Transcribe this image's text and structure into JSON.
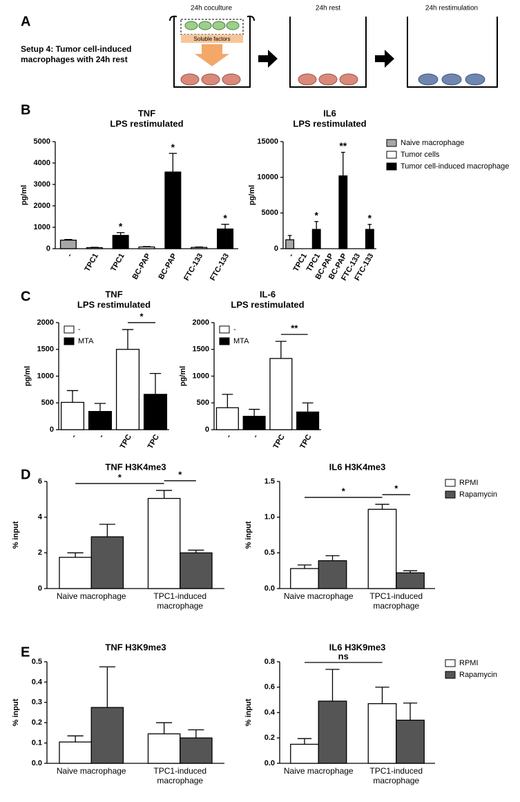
{
  "figure": {
    "panels": [
      "A",
      "B",
      "C",
      "D",
      "E"
    ],
    "setup": [
      "Setup 4: Tumor cell-induced",
      "macrophages with 24h rest"
    ],
    "steps": [
      "24h coculture",
      "24h rest",
      "24h restimulation"
    ],
    "insert_label": "Soluble factors"
  },
  "chart_data": [
    {
      "type": "bar",
      "title": "TNF",
      "subtitle": "LPS restimulated",
      "y_label": "pg/ml",
      "categories": [
        "-",
        "TPC1",
        "TPC1",
        "BC-PAP",
        "BC-PAP",
        "FTC-133",
        "FTC-133"
      ],
      "rotate_labels": true,
      "ylim": [
        0,
        5000
      ],
      "yticks": [
        0,
        1000,
        2000,
        3000,
        4000,
        5000
      ],
      "series": [
        {
          "color": "#a6a6a6",
          "values": [
            400,
            null,
            null,
            null,
            null,
            null,
            null
          ],
          "errors": [
            30,
            null,
            null,
            null,
            null,
            null,
            null
          ]
        },
        {
          "color": "#ffffff",
          "values": [
            null,
            50,
            null,
            80,
            null,
            60,
            null
          ],
          "errors": [
            null,
            15,
            null,
            20,
            null,
            20,
            null
          ]
        },
        {
          "color": "#000000",
          "values": [
            null,
            null,
            620,
            null,
            3580,
            null,
            920
          ],
          "errors": [
            null,
            null,
            130,
            null,
            870,
            null,
            220
          ]
        }
      ],
      "significance": [
        null,
        null,
        "*",
        null,
        "*",
        null,
        "*"
      ]
    },
    {
      "type": "bar",
      "title": "IL6",
      "subtitle": "LPS restimulated",
      "y_label": "pg/ml",
      "categories": [
        "-",
        "TPC1",
        "TPC1",
        "BC-PAP",
        "BC-PAP",
        "FTC-133",
        "FTC-133"
      ],
      "rotate_labels": true,
      "ylim": [
        0,
        15000
      ],
      "yticks": [
        0,
        5000,
        10000,
        15000
      ],
      "legend": "right",
      "series": [
        {
          "name": "Naive macrophage",
          "color": "#a6a6a6",
          "values": [
            1250,
            null,
            null,
            null,
            null,
            null,
            null
          ],
          "errors": [
            600,
            null,
            null,
            null,
            null,
            null,
            null
          ]
        },
        {
          "name": "Tumor cells",
          "color": "#ffffff",
          "values": [
            null,
            0,
            null,
            0,
            null,
            0,
            null
          ],
          "errors": [
            null,
            null,
            null,
            null,
            null,
            null,
            null
          ]
        },
        {
          "name": "Tumor cell-induced macrophage",
          "color": "#000000",
          "values": [
            null,
            null,
            2700,
            null,
            10200,
            null,
            2700
          ],
          "errors": [
            null,
            null,
            1100,
            null,
            3300,
            null,
            700
          ]
        }
      ],
      "significance": [
        null,
        null,
        "*",
        null,
        "**",
        null,
        "*"
      ]
    },
    {
      "type": "bar",
      "title": "TNF",
      "subtitle": "LPS restimulated",
      "y_label": "pg/ml",
      "categories": [
        "-",
        "-",
        "TPC",
        "TPC"
      ],
      "rotate_labels": true,
      "ylim": [
        0,
        2000
      ],
      "yticks": [
        0,
        500,
        1000,
        1500,
        2000
      ],
      "legend": "upper left",
      "series": [
        {
          "name": "-",
          "color": "#ffffff",
          "values": [
            510,
            null,
            1500,
            null
          ],
          "errors": [
            220,
            null,
            370,
            null
          ]
        },
        {
          "name": "MTA",
          "color": "#000000",
          "values": [
            null,
            340,
            null,
            660
          ],
          "errors": [
            null,
            150,
            null,
            390
          ]
        }
      ],
      "brackets": [
        {
          "label": "*",
          "from": [
            0,
            2
          ],
          "to": [
            1,
            3
          ]
        }
      ]
    },
    {
      "type": "bar",
      "title": "IL-6",
      "subtitle": "LPS restimulated",
      "y_label": "pg/ml",
      "categories": [
        "-",
        "-",
        "TPC",
        "TPC"
      ],
      "rotate_labels": true,
      "ylim": [
        0,
        2000
      ],
      "yticks": [
        0,
        500,
        1000,
        1500,
        2000
      ],
      "legend": "upper left",
      "series": [
        {
          "name": "-",
          "color": "#ffffff",
          "values": [
            410,
            null,
            1330,
            null
          ],
          "errors": [
            250,
            null,
            320,
            null
          ]
        },
        {
          "name": "MTA",
          "color": "#000000",
          "values": [
            null,
            250,
            null,
            330
          ],
          "errors": [
            null,
            130,
            null,
            170
          ]
        }
      ],
      "brackets": [
        {
          "label": "**",
          "from": [
            0,
            2
          ],
          "to": [
            1,
            3
          ]
        }
      ]
    },
    {
      "type": "bar",
      "title": "TNF H3K4me3",
      "y_label": "% input",
      "grouped": true,
      "categories": [
        "Naive macrophage",
        "TPC1-induced macrophage"
      ],
      "ylim": [
        0,
        6
      ],
      "yticks": [
        0,
        2,
        4,
        6
      ],
      "series": [
        {
          "color": "#ffffff",
          "values": [
            1.75,
            5.05
          ],
          "errors": [
            0.25,
            0.45
          ]
        },
        {
          "color": "#555555",
          "values": [
            2.9,
            2.0
          ],
          "errors": [
            0.7,
            0.15
          ]
        }
      ],
      "brackets": [
        {
          "label": "*",
          "from": [
            0,
            0
          ],
          "to": [
            0,
            1
          ]
        },
        {
          "label": "*",
          "from": [
            0,
            1
          ],
          "to": [
            1,
            1
          ]
        }
      ]
    },
    {
      "type": "bar",
      "title": "IL6 H3K4me3",
      "y_label": "% input",
      "grouped": true,
      "legend": "right",
      "categories": [
        "Naive macrophage",
        "TPC1-induced macrophage"
      ],
      "ylim": [
        0,
        1.5
      ],
      "yticks": [
        {
          "value": 0,
          "label": "0.0"
        },
        0.5,
        {
          "value": 1,
          "label": "1.0"
        },
        1.5
      ],
      "series": [
        {
          "name": "RPMI",
          "color": "#ffffff",
          "values": [
            0.28,
            1.11
          ],
          "errors": [
            0.05,
            0.07
          ]
        },
        {
          "name": "Rapamycin",
          "color": "#555555",
          "values": [
            0.39,
            0.22
          ],
          "errors": [
            0.07,
            0.03
          ]
        }
      ],
      "brackets": [
        {
          "label": "*",
          "from": [
            0,
            0
          ],
          "to": [
            0,
            1
          ]
        },
        {
          "label": "*",
          "from": [
            0,
            1
          ],
          "to": [
            1,
            1
          ]
        }
      ]
    },
    {
      "type": "bar",
      "title": "TNF H3K9me3",
      "y_label": "% input",
      "grouped": true,
      "categories": [
        "Naive macrophage",
        "TPC1-induced macrophage"
      ],
      "ylim": [
        0,
        0.5
      ],
      "yticks": [
        {
          "value": 0,
          "label": "0.0"
        },
        0.1,
        0.2,
        0.3,
        0.4,
        0.5
      ],
      "series": [
        {
          "color": "#ffffff",
          "values": [
            0.105,
            0.145
          ],
          "errors": [
            0.03,
            0.055
          ]
        },
        {
          "color": "#555555",
          "values": [
            0.275,
            0.125
          ],
          "errors": [
            0.2,
            0.04
          ]
        }
      ]
    },
    {
      "type": "bar",
      "title": "IL6 H3K9me3",
      "y_label": "% input",
      "grouped": true,
      "legend": "right",
      "categories": [
        "Naive macrophage",
        "TPC1-induced macrophage"
      ],
      "ylim": [
        0,
        0.8
      ],
      "yticks": [
        {
          "value": 0,
          "label": "0.0"
        },
        0.2,
        0.4,
        0.6,
        0.8
      ],
      "series": [
        {
          "name": "RPMI",
          "color": "#ffffff",
          "values": [
            0.15,
            0.47
          ],
          "errors": [
            0.045,
            0.13
          ]
        },
        {
          "name": "Rapamycin",
          "color": "#555555",
          "values": [
            0.49,
            0.34
          ],
          "errors": [
            0.25,
            0.135
          ]
        }
      ],
      "brackets": [
        {
          "label": "ns",
          "from": [
            0,
            0
          ],
          "to": [
            0,
            1
          ]
        }
      ]
    }
  ]
}
